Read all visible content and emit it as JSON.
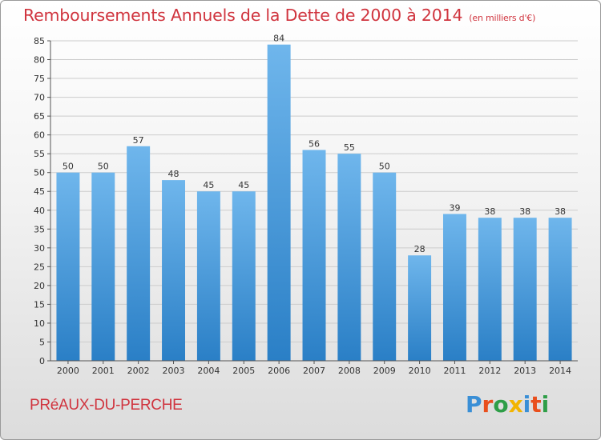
{
  "title": "Remboursements Annuels de la Dette de 2000 à 2014",
  "subtitle": "(en milliers d'€)",
  "commune": "PRéAUX-DU-PERCHE",
  "logo": {
    "letters": [
      "P",
      "r",
      "o",
      "x",
      "i",
      "t",
      "i"
    ],
    "colors": [
      "#3a8fd6",
      "#e94f1d",
      "#2e9e47",
      "#f2b400",
      "#3a8fd6",
      "#e94f1d",
      "#2e9e47"
    ]
  },
  "colors": {
    "bar_light": "#6fb6ec",
    "bar_dark": "#2a7fc6",
    "grid": "#cccccc",
    "title": "#d0343e"
  },
  "chart_data": {
    "type": "bar",
    "categories": [
      "2000",
      "2001",
      "2002",
      "2003",
      "2004",
      "2005",
      "2006",
      "2007",
      "2008",
      "2009",
      "2010",
      "2011",
      "2012",
      "2013",
      "2014"
    ],
    "values": [
      50,
      50,
      57,
      48,
      45,
      45,
      84,
      56,
      55,
      50,
      28,
      39,
      38,
      38,
      38
    ],
    "value_labels": [
      "50",
      "50",
      "57",
      "48",
      "45",
      "45",
      "84",
      "56",
      "55",
      "50",
      "28",
      "39",
      "38",
      "38",
      "38"
    ],
    "y_ticks": [
      "0",
      "5",
      "10",
      "15",
      "20",
      "25",
      "30",
      "35",
      "40",
      "45",
      "50",
      "55",
      "60",
      "65",
      "70",
      "75",
      "80",
      "85"
    ],
    "ylim": [
      0,
      85
    ],
    "grid": true
  }
}
